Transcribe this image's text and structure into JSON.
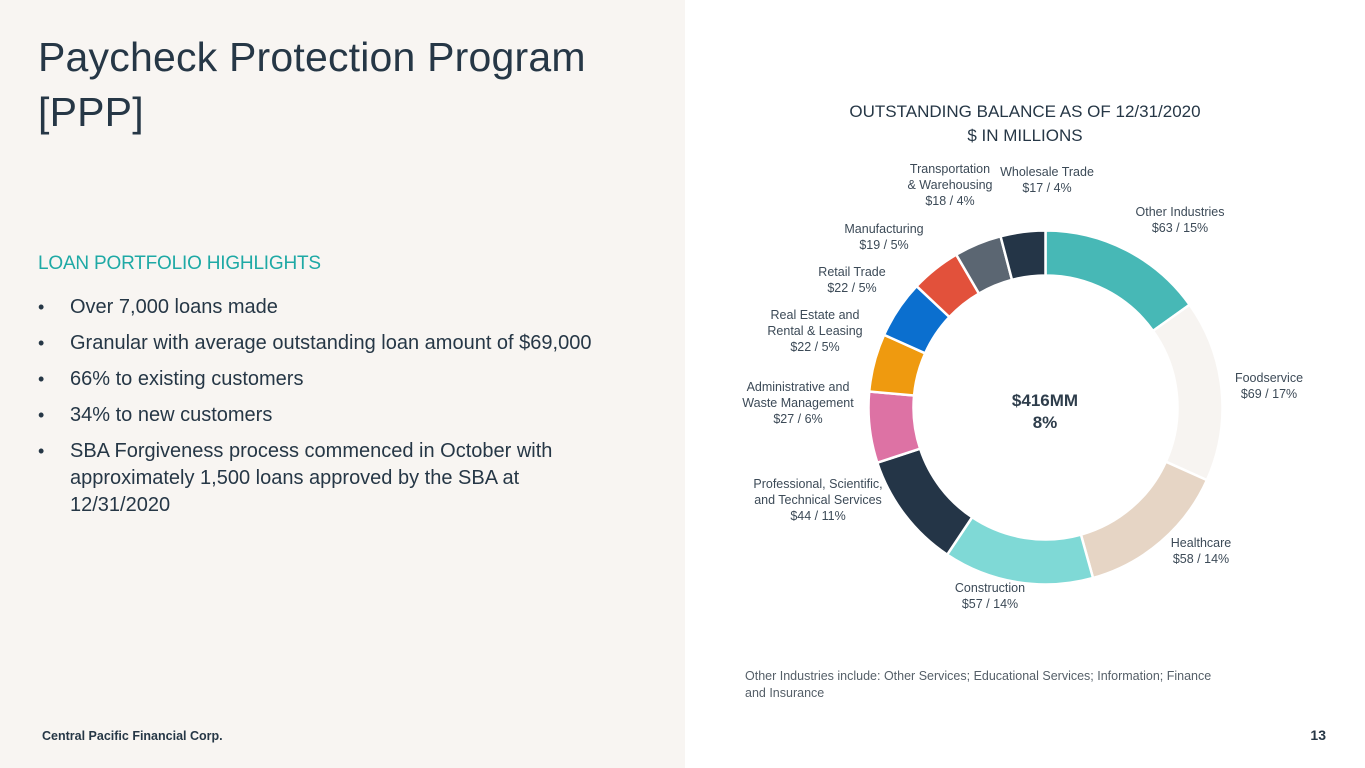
{
  "slide": {
    "title": "Paycheck Protection Program [PPP]",
    "section_heading": "LOAN PORTFOLIO HIGHLIGHTS",
    "bullet_symbol": "•",
    "bullets": [
      "Over 7,000 loans made",
      "Granular with average outstanding loan amount of $69,000",
      "66% to existing customers",
      "34% to new customers",
      "SBA Forgiveness process commenced in October with approximately 1,500 loans approved by the SBA at 12/31/2020"
    ],
    "company": "Central Pacific Financial Corp.",
    "page_number": "13",
    "footnote": "Other Industries include: Other Services; Educational Services; Information; Finance and Insurance"
  },
  "chart_data": {
    "type": "pie",
    "donut": true,
    "title": "OUTSTANDING BALANCE AS OF 12/31/2020",
    "subtitle": "$ IN MILLIONS",
    "center_label": {
      "total": "$416MM",
      "percent": "8%"
    },
    "units": "$ in millions",
    "start": "12 o'clock, clockwise",
    "slices": [
      {
        "name": "Other Industries",
        "label_lines": [
          "Other Industries"
        ],
        "value": 63,
        "percent": 15,
        "value_label": "$63 / 15%",
        "color": "#47b8b6"
      },
      {
        "name": "Foodservice",
        "label_lines": [
          "Foodservice"
        ],
        "value": 69,
        "percent": 17,
        "value_label": "$69 / 17%",
        "color": "#f7f4f1"
      },
      {
        "name": "Healthcare",
        "label_lines": [
          "Healthcare"
        ],
        "value": 58,
        "percent": 14,
        "value_label": "$58 / 14%",
        "color": "#e6d5c5"
      },
      {
        "name": "Construction",
        "label_lines": [
          "Construction"
        ],
        "value": 57,
        "percent": 14,
        "value_label": "$57 / 14%",
        "color": "#7fd9d6"
      },
      {
        "name": "Professional, Scientific, and Technical Services",
        "label_lines": [
          "Professional, Scientific,",
          "and Technical Services"
        ],
        "value": 44,
        "percent": 11,
        "value_label": "$44 / 11%",
        "color": "#243547"
      },
      {
        "name": "Administrative and Waste Management",
        "label_lines": [
          "Administrative and",
          "Waste Management"
        ],
        "value": 27,
        "percent": 6,
        "value_label": "$27 / 6%",
        "color": "#dd72a4"
      },
      {
        "name": "Real Estate and Rental & Leasing",
        "label_lines": [
          "Real Estate and",
          "Rental & Leasing"
        ],
        "value": 22,
        "percent": 5,
        "value_label": "$22 / 5%",
        "color": "#ef9a0f"
      },
      {
        "name": "Retail Trade",
        "label_lines": [
          "Retail Trade"
        ],
        "value": 22,
        "percent": 5,
        "value_label": "$22 / 5%",
        "color": "#0b6fcf"
      },
      {
        "name": "Manufacturing",
        "label_lines": [
          "Manufacturing"
        ],
        "value": 19,
        "percent": 5,
        "value_label": "$19 / 5%",
        "color": "#e2513b"
      },
      {
        "name": "Transportation & Warehousing",
        "label_lines": [
          "Transportation",
          "& Warehousing"
        ],
        "value": 18,
        "percent": 4,
        "value_label": "$18 / 4%",
        "color": "#5b6672"
      },
      {
        "name": "Wholesale Trade",
        "label_lines": [
          "Wholesale Trade"
        ],
        "value": 17,
        "percent": 4,
        "value_label": "$17 / 4%",
        "color": "#243547"
      }
    ]
  }
}
